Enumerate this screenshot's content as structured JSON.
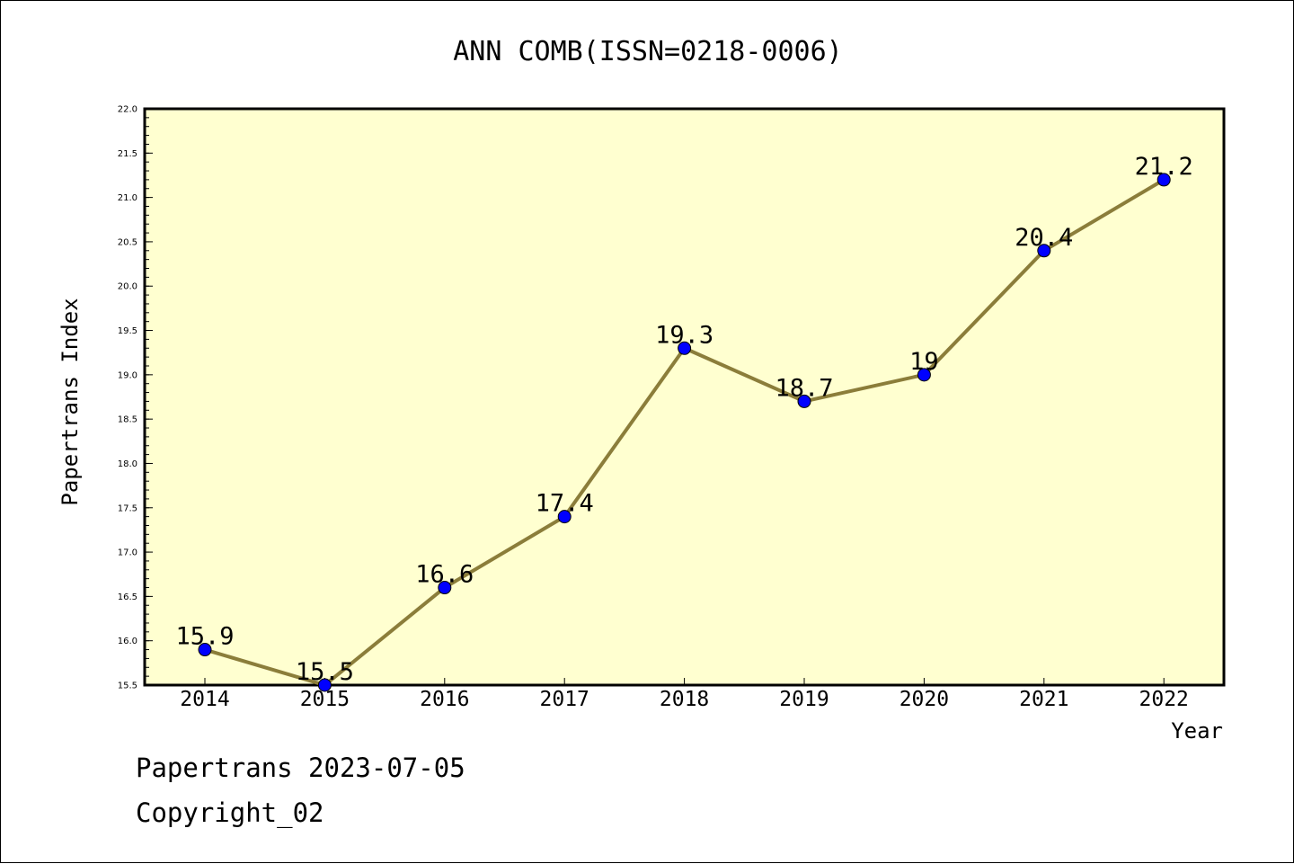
{
  "chart_data": {
    "type": "line",
    "title": "ANN COMB(ISSN=0218-0006)",
    "xlabel": "Year",
    "ylabel": "Papertrans Index",
    "categories": [
      "2014",
      "2015",
      "2016",
      "2017",
      "2018",
      "2019",
      "2020",
      "2021",
      "2022"
    ],
    "series": [
      {
        "values": [
          15.9,
          15.5,
          16.6,
          17.4,
          19.3,
          18.7,
          19,
          20.4,
          21.2
        ]
      }
    ],
    "data_labels": [
      "15.9",
      "15.5",
      "16.6",
      "17.4",
      "19.3",
      "18.7",
      "19",
      "20.4",
      "21.2"
    ],
    "ylim": [
      15.5,
      22.0
    ],
    "yticks": [
      "15.5",
      "16.0",
      "16.5",
      "17.0",
      "17.5",
      "18.0",
      "18.5",
      "19.0",
      "19.5",
      "20.0",
      "20.5",
      "21.0",
      "21.5",
      "22.0"
    ],
    "grid": false,
    "legend": "none",
    "colors": {
      "plot_background": "#ffffd0",
      "line": "#8b7d3a",
      "marker": "#0000ff",
      "frame": "#000000"
    }
  },
  "footer": {
    "line1": "Papertrans 2023-07-05",
    "line2": "Copyright_02"
  }
}
